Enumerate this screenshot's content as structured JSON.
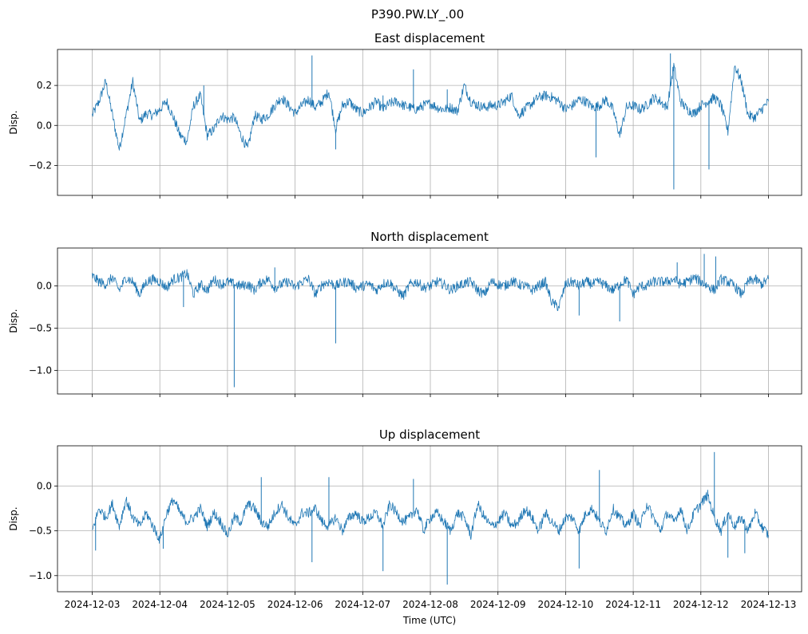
{
  "figure": {
    "suptitle": "P390.PW.LY_.00",
    "xlabel": "Time (UTC)",
    "line_color": "#1f77b4",
    "grid_color": "#b0b0b0"
  },
  "chart_data": [
    {
      "type": "line",
      "title": "East displacement",
      "ylabel": "Disp.",
      "xlabel": "",
      "ylim": [
        -0.35,
        0.38
      ],
      "yticks": [
        -0.2,
        0.0,
        0.2
      ],
      "ytick_labels": [
        "−0.2",
        "0.0",
        "0.2"
      ],
      "show_xticklabels": false,
      "grid": true,
      "x_start": "2024-12-03",
      "x_end": "2024-12-13",
      "series": [
        {
          "name": "East",
          "x": [
            0.0,
            0.1,
            0.2,
            0.3,
            0.4,
            0.5,
            0.6,
            0.7,
            0.8,
            0.9,
            1.0,
            1.1,
            1.2,
            1.3,
            1.4,
            1.5,
            1.6,
            1.7,
            1.8,
            1.9,
            2.0,
            2.1,
            2.2,
            2.3,
            2.4,
            2.5,
            2.6,
            2.7,
            2.8,
            2.9,
            3.0,
            3.1,
            3.2,
            3.3,
            3.4,
            3.5,
            3.6,
            3.7,
            3.8,
            3.9,
            4.0,
            4.1,
            4.2,
            4.3,
            4.4,
            4.5,
            4.6,
            4.7,
            4.8,
            4.9,
            5.0,
            5.1,
            5.2,
            5.3,
            5.4,
            5.5,
            5.6,
            5.7,
            5.8,
            5.9,
            6.0,
            6.1,
            6.2,
            6.3,
            6.4,
            6.5,
            6.6,
            6.7,
            6.8,
            6.9,
            7.0,
            7.1,
            7.2,
            7.3,
            7.4,
            7.5,
            7.6,
            7.7,
            7.8,
            7.9,
            8.0,
            8.1,
            8.2,
            8.3,
            8.4,
            8.5,
            8.6,
            8.7,
            8.8,
            8.9,
            9.0,
            9.1,
            9.2,
            9.3,
            9.4,
            9.5,
            9.6,
            9.7,
            9.8,
            9.9,
            10.0
          ],
          "y": [
            0.05,
            0.12,
            0.22,
            0.05,
            -0.12,
            0.05,
            0.22,
            0.02,
            0.06,
            0.05,
            0.08,
            0.12,
            0.04,
            -0.05,
            -0.08,
            0.1,
            0.15,
            -0.05,
            -0.02,
            0.05,
            0.03,
            0.04,
            -0.05,
            -0.12,
            0.05,
            0.03,
            0.05,
            0.1,
            0.14,
            0.1,
            0.06,
            0.1,
            0.13,
            0.09,
            0.12,
            0.17,
            -0.02,
            0.1,
            0.12,
            0.08,
            0.06,
            0.09,
            0.12,
            0.08,
            0.11,
            0.12,
            0.1,
            0.09,
            0.08,
            0.1,
            0.11,
            0.09,
            0.08,
            0.09,
            0.07,
            0.2,
            0.12,
            0.1,
            0.09,
            0.1,
            0.1,
            0.12,
            0.15,
            0.05,
            0.08,
            0.11,
            0.14,
            0.15,
            0.14,
            0.12,
            0.08,
            0.1,
            0.13,
            0.12,
            0.09,
            0.1,
            0.13,
            0.08,
            -0.05,
            0.09,
            0.1,
            0.08,
            0.1,
            0.14,
            0.12,
            0.09,
            0.3,
            0.12,
            0.08,
            0.06,
            0.1,
            0.12,
            0.14,
            0.1,
            -0.03,
            0.3,
            0.22,
            0.05,
            0.04,
            0.08,
            0.12
          ],
          "spikes": [
            [
              1.65,
              0.2
            ],
            [
              3.25,
              0.35
            ],
            [
              3.6,
              -0.12
            ],
            [
              4.3,
              0.15
            ],
            [
              4.75,
              0.28
            ],
            [
              5.25,
              0.18
            ],
            [
              7.45,
              -0.16
            ],
            [
              8.55,
              0.36
            ],
            [
              8.6,
              -0.32
            ],
            [
              9.12,
              -0.22
            ]
          ]
        }
      ]
    },
    {
      "type": "line",
      "title": "North displacement",
      "ylabel": "Disp.",
      "xlabel": "",
      "ylim": [
        -1.28,
        0.45
      ],
      "yticks": [
        -1.0,
        -0.5,
        0.0
      ],
      "ytick_labels": [
        "−1.0",
        "−0.5",
        "0.0"
      ],
      "show_xticklabels": false,
      "grid": true,
      "x_start": "2024-12-03",
      "x_end": "2024-12-13",
      "series": [
        {
          "name": "North",
          "x": [
            0.0,
            0.1,
            0.2,
            0.3,
            0.4,
            0.5,
            0.6,
            0.7,
            0.8,
            0.9,
            1.0,
            1.1,
            1.2,
            1.3,
            1.4,
            1.5,
            1.6,
            1.7,
            1.8,
            1.9,
            2.0,
            2.1,
            2.2,
            2.3,
            2.4,
            2.5,
            2.6,
            2.7,
            2.8,
            2.9,
            3.0,
            3.1,
            3.2,
            3.3,
            3.4,
            3.5,
            3.6,
            3.7,
            3.8,
            3.9,
            4.0,
            4.1,
            4.2,
            4.3,
            4.4,
            4.5,
            4.6,
            4.7,
            4.8,
            4.9,
            5.0,
            5.1,
            5.2,
            5.3,
            5.4,
            5.5,
            5.6,
            5.7,
            5.8,
            5.9,
            6.0,
            6.1,
            6.2,
            6.3,
            6.4,
            6.5,
            6.6,
            6.7,
            6.8,
            6.9,
            7.0,
            7.1,
            7.2,
            7.3,
            7.4,
            7.5,
            7.6,
            7.7,
            7.8,
            7.9,
            8.0,
            8.1,
            8.2,
            8.3,
            8.4,
            8.5,
            8.6,
            8.7,
            8.8,
            8.9,
            9.0,
            9.1,
            9.2,
            9.3,
            9.4,
            9.5,
            9.6,
            9.7,
            9.8,
            9.9,
            10.0
          ],
          "y": [
            0.12,
            0.05,
            0.02,
            0.1,
            -0.05,
            0.1,
            0.05,
            -0.1,
            0.05,
            0.08,
            0.05,
            -0.02,
            0.08,
            0.1,
            0.15,
            -0.1,
            0.02,
            -0.05,
            0.08,
            0.02,
            0.05,
            0.02,
            0.0,
            0.02,
            -0.05,
            0.05,
            0.08,
            -0.02,
            0.02,
            0.05,
            -0.02,
            0.05,
            0.08,
            -0.1,
            0.02,
            0.05,
            0.0,
            0.04,
            0.05,
            -0.02,
            0.0,
            0.02,
            -0.05,
            0.03,
            0.04,
            -0.05,
            -0.12,
            0.02,
            0.05,
            -0.02,
            0.0,
            0.05,
            0.02,
            -0.05,
            0.0,
            0.03,
            0.05,
            -0.05,
            -0.1,
            0.05,
            0.02,
            0.0,
            0.06,
            0.02,
            0.0,
            -0.05,
            0.0,
            0.05,
            -0.2,
            -0.25,
            0.02,
            0.05,
            0.0,
            0.05,
            0.02,
            0.05,
            0.0,
            -0.05,
            0.02,
            0.08,
            -0.1,
            0.0,
            0.0,
            0.05,
            0.05,
            0.05,
            0.08,
            0.02,
            0.05,
            0.1,
            0.05,
            0.0,
            -0.05,
            0.08,
            0.05,
            0.0,
            -0.1,
            0.05,
            0.08,
            0.02,
            0.08
          ],
          "spikes": [
            [
              2.1,
              -1.2
            ],
            [
              3.6,
              -0.68
            ],
            [
              2.7,
              0.22
            ],
            [
              7.2,
              -0.35
            ],
            [
              7.8,
              -0.42
            ],
            [
              9.05,
              0.38
            ],
            [
              9.22,
              0.35
            ],
            [
              8.65,
              0.28
            ],
            [
              1.35,
              -0.25
            ]
          ]
        }
      ]
    },
    {
      "type": "line",
      "title": "Up displacement",
      "ylabel": "Disp.",
      "xlabel": "Time (UTC)",
      "ylim": [
        -1.18,
        0.45
      ],
      "yticks": [
        -1.0,
        -0.5,
        0.0
      ],
      "ytick_labels": [
        "−1.0",
        "−0.5",
        "0.0"
      ],
      "show_xticklabels": true,
      "xtick_labels": [
        "2024-12-03",
        "2024-12-04",
        "2024-12-05",
        "2024-12-06",
        "2024-12-07",
        "2024-12-08",
        "2024-12-09",
        "2024-12-10",
        "2024-12-11",
        "2024-12-12",
        "2024-12-13"
      ],
      "grid": true,
      "x_start": "2024-12-03",
      "x_end": "2024-12-13",
      "series": [
        {
          "name": "Up",
          "x": [
            0.0,
            0.1,
            0.2,
            0.3,
            0.4,
            0.5,
            0.6,
            0.7,
            0.8,
            0.9,
            1.0,
            1.1,
            1.2,
            1.3,
            1.4,
            1.5,
            1.6,
            1.7,
            1.8,
            1.9,
            2.0,
            2.1,
            2.2,
            2.3,
            2.4,
            2.5,
            2.6,
            2.7,
            2.8,
            2.9,
            3.0,
            3.1,
            3.2,
            3.3,
            3.4,
            3.5,
            3.6,
            3.7,
            3.8,
            3.9,
            4.0,
            4.1,
            4.2,
            4.3,
            4.4,
            4.5,
            4.6,
            4.7,
            4.8,
            4.9,
            5.0,
            5.1,
            5.2,
            5.3,
            5.4,
            5.5,
            5.6,
            5.7,
            5.8,
            5.9,
            6.0,
            6.1,
            6.2,
            6.3,
            6.4,
            6.5,
            6.6,
            6.7,
            6.8,
            6.9,
            7.0,
            7.1,
            7.2,
            7.3,
            7.4,
            7.5,
            7.6,
            7.7,
            7.8,
            7.9,
            8.0,
            8.1,
            8.2,
            8.3,
            8.4,
            8.5,
            8.6,
            8.7,
            8.8,
            8.9,
            9.0,
            9.1,
            9.2,
            9.3,
            9.4,
            9.5,
            9.6,
            9.7,
            9.8,
            9.9,
            10.0
          ],
          "y": [
            -0.5,
            -0.25,
            -0.35,
            -0.2,
            -0.45,
            -0.15,
            -0.35,
            -0.45,
            -0.3,
            -0.45,
            -0.6,
            -0.3,
            -0.15,
            -0.3,
            -0.4,
            -0.35,
            -0.25,
            -0.45,
            -0.3,
            -0.4,
            -0.55,
            -0.35,
            -0.4,
            -0.2,
            -0.25,
            -0.4,
            -0.45,
            -0.3,
            -0.2,
            -0.35,
            -0.45,
            -0.3,
            -0.3,
            -0.25,
            -0.4,
            -0.45,
            -0.35,
            -0.5,
            -0.35,
            -0.3,
            -0.4,
            -0.35,
            -0.3,
            -0.45,
            -0.2,
            -0.3,
            -0.4,
            -0.35,
            -0.25,
            -0.5,
            -0.35,
            -0.3,
            -0.4,
            -0.5,
            -0.3,
            -0.35,
            -0.55,
            -0.2,
            -0.35,
            -0.45,
            -0.4,
            -0.3,
            -0.45,
            -0.4,
            -0.25,
            -0.35,
            -0.5,
            -0.3,
            -0.4,
            -0.5,
            -0.35,
            -0.35,
            -0.5,
            -0.3,
            -0.25,
            -0.4,
            -0.5,
            -0.25,
            -0.35,
            -0.45,
            -0.3,
            -0.45,
            -0.2,
            -0.35,
            -0.5,
            -0.3,
            -0.4,
            -0.25,
            -0.5,
            -0.3,
            -0.2,
            -0.1,
            -0.35,
            -0.5,
            -0.3,
            -0.45,
            -0.35,
            -0.5,
            -0.3,
            -0.45,
            -0.55
          ],
          "spikes": [
            [
              0.05,
              -0.72
            ],
            [
              1.05,
              -0.7
            ],
            [
              3.25,
              -0.85
            ],
            [
              4.3,
              -0.95
            ],
            [
              5.25,
              -1.1
            ],
            [
              7.2,
              -0.92
            ],
            [
              7.5,
              0.18
            ],
            [
              9.2,
              0.38
            ],
            [
              9.4,
              -0.8
            ],
            [
              9.65,
              -0.75
            ],
            [
              2.5,
              0.1
            ],
            [
              4.75,
              0.08
            ],
            [
              3.5,
              0.1
            ]
          ]
        }
      ]
    }
  ]
}
